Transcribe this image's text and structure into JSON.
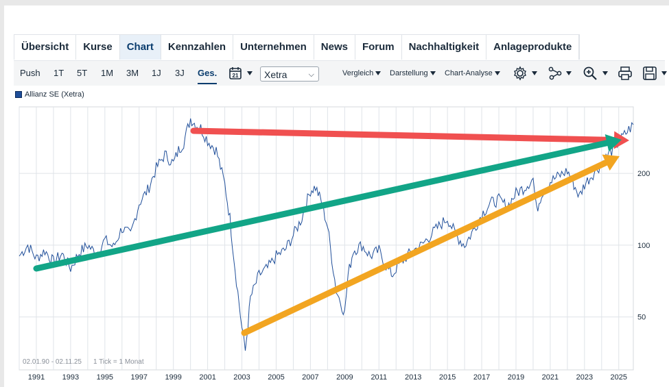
{
  "tabs": [
    {
      "label": "Übersicht",
      "active": false
    },
    {
      "label": "Kurse",
      "active": false
    },
    {
      "label": "Chart",
      "active": true
    },
    {
      "label": "Kennzahlen",
      "active": false
    },
    {
      "label": "Unternehmen",
      "active": false
    },
    {
      "label": "News",
      "active": false
    },
    {
      "label": "Forum",
      "active": false
    },
    {
      "label": "Nachhaltigkeit",
      "active": false
    },
    {
      "label": "Anlageprodukte",
      "active": false
    }
  ],
  "toolbar": {
    "ranges": [
      "Push",
      "1T",
      "5T",
      "1M",
      "3M",
      "1J",
      "3J",
      "Ges."
    ],
    "active_range": "Ges.",
    "calendar_number": "21",
    "exchange": "Xetra",
    "vergleich": "Vergleich",
    "darstellung": "Darstellung",
    "chart_analyse": "Chart-Analyse"
  },
  "legend": {
    "series_label": "Allianz SE (Xetra)"
  },
  "footer": {
    "date_range": "02.01.90 - 02.11.25",
    "tick_info": "1 Tick = 1 Monat"
  },
  "colors": {
    "line": "#1f4e99",
    "arrow_red": "#f05050",
    "arrow_green": "#12a587",
    "arrow_orange": "#f2a521",
    "grid": "#dfe3e8"
  },
  "chart_data": {
    "type": "line",
    "y_scale": "log",
    "yticks": [
      50,
      100,
      200
    ],
    "xticks": [
      "1991",
      "1993",
      "1995",
      "1997",
      "1999",
      "2001",
      "2003",
      "2005",
      "2007",
      "2009",
      "2011",
      "2013",
      "2015",
      "2017",
      "2019",
      "2021",
      "2023",
      "2025"
    ],
    "xlim": [
      1990.0,
      2025.85
    ],
    "ylim": [
      30,
      380
    ],
    "series": [
      {
        "name": "Allianz SE (Xetra)",
        "x": [
          1990.0,
          1990.5,
          1991.0,
          1991.5,
          1992.0,
          1992.5,
          1993.0,
          1993.5,
          1994.0,
          1994.5,
          1995.0,
          1995.5,
          1996.0,
          1996.5,
          1997.0,
          1997.5,
          1998.0,
          1998.5,
          1999.0,
          1999.3,
          1999.6,
          2000.0,
          2000.3,
          2000.6,
          2001.0,
          2001.5,
          2002.0,
          2002.3,
          2002.6,
          2003.0,
          2003.2,
          2003.5,
          2004.0,
          2004.5,
          2005.0,
          2005.5,
          2006.0,
          2006.5,
          2007.0,
          2007.3,
          2007.6,
          2008.0,
          2008.5,
          2009.0,
          2009.2,
          2009.5,
          2010.0,
          2010.5,
          2011.0,
          2011.5,
          2011.8,
          2012.0,
          2012.5,
          2013.0,
          2013.5,
          2014.0,
          2014.5,
          2015.0,
          2015.5,
          2016.0,
          2016.5,
          2017.0,
          2017.5,
          2018.0,
          2018.5,
          2019.0,
          2019.5,
          2020.0,
          2020.2,
          2020.5,
          2021.0,
          2021.5,
          2022.0,
          2022.3,
          2022.7,
          2023.0,
          2023.5,
          2024.0,
          2024.5,
          2025.0,
          2025.5,
          2025.85
        ],
        "values": [
          90,
          100,
          88,
          95,
          85,
          92,
          80,
          93,
          100,
          92,
          105,
          98,
          118,
          110,
          150,
          170,
          210,
          240,
          220,
          250,
          270,
          340,
          320,
          310,
          275,
          250,
          180,
          130,
          80,
          45,
          36,
          60,
          75,
          80,
          90,
          95,
          110,
          130,
          170,
          175,
          155,
          120,
          65,
          52,
          75,
          95,
          100,
          90,
          95,
          80,
          75,
          80,
          88,
          95,
          100,
          110,
          120,
          130,
          110,
          100,
          115,
          135,
          150,
          155,
          145,
          165,
          175,
          190,
          140,
          165,
          185,
          195,
          205,
          185,
          160,
          180,
          200,
          220,
          245,
          270,
          300,
          320
        ]
      }
    ]
  }
}
